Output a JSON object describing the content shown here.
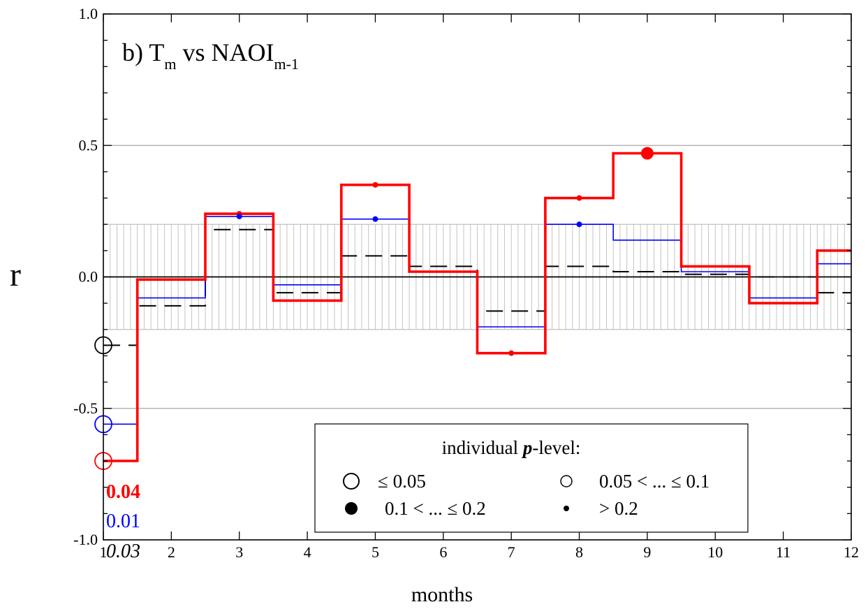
{
  "chart_data": {
    "type": "line",
    "title": {
      "prefix": "b) T",
      "sub1": "m",
      "middle": " vs NAOI",
      "sub2": "m-1"
    },
    "xlabel": "months",
    "ylabel": "r",
    "xlim": [
      1,
      12
    ],
    "ylim": [
      -1.0,
      1.0
    ],
    "x_ticks": [
      1,
      2,
      3,
      4,
      5,
      6,
      7,
      8,
      9,
      10,
      11,
      12
    ],
    "y_tick_labels": [
      {
        "value": 1.0,
        "label": "1.0"
      },
      {
        "value": 0.5,
        "label": "0.5"
      },
      {
        "value": 0.0,
        "label": "0.0"
      },
      {
        "value": -0.5,
        "label": "-0.5"
      },
      {
        "value": -1.0,
        "label": "-1.0"
      }
    ],
    "gridlines_y": [
      0.5,
      -0.5
    ],
    "confidence_band": [
      -0.2,
      0.2
    ],
    "step": "centered",
    "series": [
      {
        "style": "dashed",
        "color": "#000000",
        "x": [
          1,
          2,
          3,
          4,
          5,
          6,
          7,
          8,
          9,
          10,
          11,
          12
        ],
        "values": [
          -0.26,
          -0.11,
          0.18,
          -0.06,
          0.08,
          0.04,
          -0.13,
          0.04,
          0.02,
          0.01,
          0.0,
          -0.06
        ]
      },
      {
        "style": "thin",
        "color": "#0000ff",
        "x": [
          1,
          2,
          3,
          4,
          5,
          6,
          7,
          8,
          9,
          10,
          11,
          12
        ],
        "values": [
          -0.56,
          -0.08,
          0.23,
          -0.03,
          0.22,
          0.02,
          -0.19,
          0.2,
          0.14,
          0.02,
          -0.08,
          0.05
        ]
      },
      {
        "style": "thick",
        "color": "#ff0000",
        "x": [
          1,
          2,
          3,
          4,
          5,
          6,
          7,
          8,
          9,
          10,
          11,
          12
        ],
        "values": [
          -0.7,
          -0.01,
          0.24,
          -0.09,
          0.35,
          0.02,
          -0.29,
          0.3,
          0.47,
          0.04,
          -0.1,
          0.1
        ]
      }
    ],
    "significance_markers": [
      {
        "color": "#000000",
        "x": 1,
        "value": -0.26,
        "class": "open-large"
      },
      {
        "color": "#0000ff",
        "x": 1,
        "value": -0.56,
        "class": "open-large"
      },
      {
        "color": "#ff0000",
        "x": 1,
        "value": -0.7,
        "class": "open-large"
      },
      {
        "color": "#ff0000",
        "x": 3,
        "value": 0.24,
        "class": "dot-small"
      },
      {
        "color": "#0000ff",
        "x": 3,
        "value": 0.23,
        "class": "dot-small"
      },
      {
        "color": "#ff0000",
        "x": 5,
        "value": 0.35,
        "class": "dot-small"
      },
      {
        "color": "#0000ff",
        "x": 5,
        "value": 0.22,
        "class": "dot-small"
      },
      {
        "color": "#ff0000",
        "x": 7,
        "value": -0.29,
        "class": "dot-small"
      },
      {
        "color": "#ff0000",
        "x": 8,
        "value": 0.3,
        "class": "dot-small"
      },
      {
        "color": "#0000ff",
        "x": 8,
        "value": 0.2,
        "class": "dot-small"
      },
      {
        "color": "#ff0000",
        "x": 9,
        "value": 0.47,
        "class": "filled-large"
      }
    ],
    "corner_values": [
      {
        "label": "0.04",
        "color": "#ff0000",
        "bold": true,
        "italic": false
      },
      {
        "label": "0.01",
        "color": "#0000ff",
        "bold": false,
        "italic": false
      },
      {
        "label": "0.03",
        "color": "#000000",
        "bold": false,
        "italic": true
      }
    ],
    "legend": {
      "placement": "bottom-right",
      "header_prefix": "individual ",
      "header_bold": "p",
      "header_suffix": "-level:",
      "entries": [
        {
          "marker": "open-large",
          "label": "≤ 0.05"
        },
        {
          "marker": "open-small",
          "label": "0.05 < ... ≤ 0.1"
        },
        {
          "marker": "filled-large",
          "label": "0.1 < ... ≤ 0.2"
        },
        {
          "marker": "dot-small",
          "label": "> 0.2"
        }
      ]
    }
  }
}
